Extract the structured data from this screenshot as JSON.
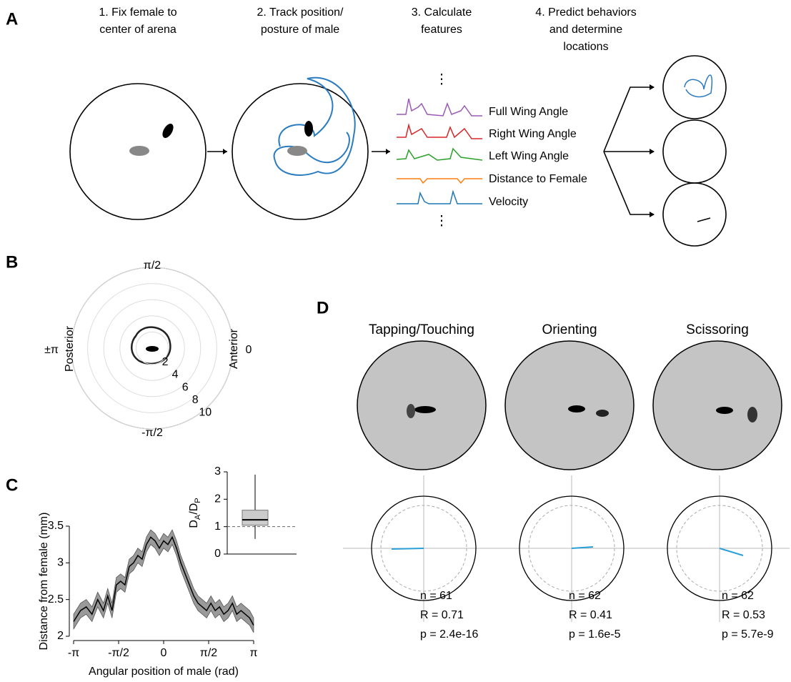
{
  "panel_labels": [
    "A",
    "B",
    "C",
    "D"
  ],
  "panel_a": {
    "steps": [
      [
        "1. Fix female to",
        "center of arena"
      ],
      [
        "2. Track position/",
        "posture of male"
      ],
      [
        "3. Calculate",
        "features"
      ],
      [
        "4. Predict behaviors",
        "and determine",
        "locations"
      ]
    ],
    "features": [
      "Full Wing Angle",
      "Right Wing Angle",
      "Left Wing Angle",
      "Distance to Female",
      "Velocity"
    ],
    "ellipsis": "⋮"
  },
  "panel_b": {
    "angle_labels": {
      "top": "π/2",
      "bottom": "-π/2",
      "right": "0",
      "left": "±π"
    },
    "side_labels": {
      "left": "Posterior",
      "right": "Anterior"
    },
    "rlim": [
      0,
      10
    ],
    "rticks": [
      2,
      4,
      6,
      8,
      10
    ]
  },
  "chart_data": [
    {
      "type": "line",
      "ylabel": "Distance from female (mm)",
      "xlabel": "Angular position of male (rad)",
      "x": [
        -3.14,
        -2.9,
        -2.7,
        -2.5,
        -2.3,
        -2.1,
        -1.95,
        -1.8,
        -1.65,
        -1.5,
        -1.35,
        -1.2,
        -1.05,
        -0.9,
        -0.75,
        -0.6,
        -0.45,
        -0.3,
        -0.15,
        0,
        0.15,
        0.3,
        0.45,
        0.6,
        0.75,
        0.9,
        1.05,
        1.2,
        1.35,
        1.5,
        1.65,
        1.8,
        1.95,
        2.1,
        2.25,
        2.4,
        2.55,
        2.7,
        2.85,
        3.0,
        3.14
      ],
      "values": [
        2.2,
        2.35,
        2.4,
        2.3,
        2.5,
        2.35,
        2.55,
        2.35,
        2.7,
        2.75,
        2.7,
        2.95,
        3.0,
        3.1,
        3.05,
        3.25,
        3.35,
        3.3,
        3.2,
        3.3,
        3.25,
        3.35,
        3.2,
        3.0,
        2.85,
        2.7,
        2.55,
        2.45,
        2.4,
        2.35,
        2.45,
        2.35,
        2.4,
        2.3,
        2.35,
        2.45,
        2.3,
        2.35,
        2.3,
        2.25,
        2.15
      ],
      "errors": [
        0.1,
        0.1,
        0.1,
        0.1,
        0.1,
        0.1,
        0.1,
        0.1,
        0.1,
        0.1,
        0.1,
        0.1,
        0.1,
        0.1,
        0.1,
        0.1,
        0.1,
        0.1,
        0.1,
        0.1,
        0.1,
        0.1,
        0.1,
        0.1,
        0.1,
        0.1,
        0.1,
        0.1,
        0.1,
        0.1,
        0.1,
        0.1,
        0.1,
        0.1,
        0.1,
        0.1,
        0.1,
        0.1,
        0.1,
        0.1,
        0.1
      ],
      "color": "#000000",
      "band_color": "#9a9a9a",
      "xlim": [
        -3.1416,
        3.1416
      ],
      "xticks": [
        {
          "value": -3.1416,
          "label": "-π"
        },
        {
          "value": -1.5708,
          "label": "-π/2"
        },
        0,
        {
          "value": 1.5708,
          "label": "π/2"
        },
        {
          "value": 3.1416,
          "label": "π"
        }
      ],
      "ylim": [
        2,
        3.5
      ],
      "yticks": [
        2,
        2.5,
        3,
        3.5
      ]
    },
    {
      "type": "box",
      "ylabel": [
        "D",
        "A",
        "/D",
        "P"
      ],
      "whisker_low": 0.55,
      "q1": 1.05,
      "median": 1.25,
      "q3": 1.6,
      "whisker_high": 2.9,
      "reference": 1,
      "color": "#cccccc",
      "ylim": [
        0,
        3
      ],
      "yticks": [
        0,
        1,
        2,
        3
      ]
    }
  ],
  "panel_d": {
    "titles": [
      "Tapping/Touching",
      "Orienting",
      "Scissoring"
    ],
    "stats": [
      [
        "n = 61",
        "R = 0.71",
        "p = 2.4e-16"
      ],
      [
        "n = 62",
        "R = 0.41",
        "p = 1.6e-5"
      ],
      [
        "n = 62",
        "R = 0.53",
        "p = 5.7e-9"
      ]
    ]
  }
}
